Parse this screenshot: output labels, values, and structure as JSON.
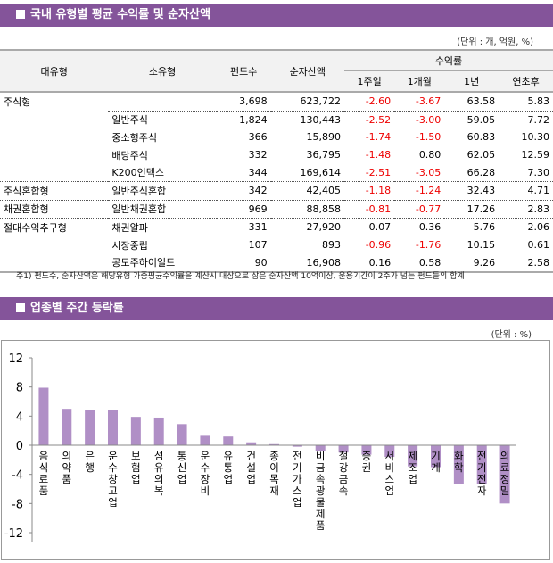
{
  "section1": {
    "title": "국내 유형별 평균 수익률 및 순자산액",
    "unit": "(단위 : 개, 억원, %)",
    "headers": {
      "major": "대유형",
      "minor": "소유형",
      "funds": "펀드수",
      "assets": "순자산액",
      "returns": "수익률",
      "w1": "1주일",
      "m1": "1개월",
      "y1": "1년",
      "ytd": "연초후"
    },
    "rows": [
      {
        "major": "주식형",
        "minor": "",
        "funds": "3,698",
        "assets": "623,722",
        "w1": "-2.60",
        "m1": "-3.67",
        "y1": "63.58",
        "ytd": "5.83"
      },
      {
        "major": "",
        "minor": "일반주식",
        "funds": "1,824",
        "assets": "130,443",
        "w1": "-2.52",
        "m1": "-3.00",
        "y1": "59.05",
        "ytd": "7.72"
      },
      {
        "major": "",
        "minor": "중소형주식",
        "funds": "366",
        "assets": "15,890",
        "w1": "-1.74",
        "m1": "-1.50",
        "y1": "60.83",
        "ytd": "10.30"
      },
      {
        "major": "",
        "minor": "배당주식",
        "funds": "332",
        "assets": "36,795",
        "w1": "-1.48",
        "m1": "0.80",
        "y1": "62.05",
        "ytd": "12.59"
      },
      {
        "major": "",
        "minor": "K200인덱스",
        "funds": "344",
        "assets": "169,614",
        "w1": "-2.51",
        "m1": "-3.05",
        "y1": "66.28",
        "ytd": "7.30"
      },
      {
        "major": "주식혼합형",
        "minor": "일반주식혼합",
        "funds": "342",
        "assets": "42,405",
        "w1": "-1.18",
        "m1": "-1.24",
        "y1": "32.43",
        "ytd": "4.71"
      },
      {
        "major": "채권혼합형",
        "minor": "일반채권혼합",
        "funds": "969",
        "assets": "88,858",
        "w1": "-0.81",
        "m1": "-0.77",
        "y1": "17.26",
        "ytd": "2.83"
      },
      {
        "major": "절대수익추구형",
        "minor": "채권알파",
        "funds": "331",
        "assets": "27,920",
        "w1": "0.07",
        "m1": "0.36",
        "y1": "5.76",
        "ytd": "2.06"
      },
      {
        "major": "",
        "minor": "시장중립",
        "funds": "107",
        "assets": "893",
        "w1": "-0.96",
        "m1": "-1.76",
        "y1": "10.15",
        "ytd": "0.61"
      },
      {
        "major": "",
        "minor": "공모주하이일드",
        "funds": "90",
        "assets": "16,908",
        "w1": "0.16",
        "m1": "0.58",
        "y1": "9.26",
        "ytd": "2.58"
      }
    ],
    "note": "주1) 펀드수, 순자산액은 해당유형 가중평균수익률을 계산시 대상으로 삼은 순자산액 10억이상, 운용기간이 2주가 넘는 펀드들의 합계"
  },
  "section2": {
    "title": "업종별 주간 등락률",
    "unit": "(단위 : %)"
  },
  "colors": {
    "header_bar": "#84549a",
    "bar": "#b08fc6",
    "negative": "#e00000"
  },
  "chart_data": {
    "type": "bar",
    "ylim": [
      -12,
      12
    ],
    "yticks": [
      12,
      8,
      4,
      0,
      -4,
      -8,
      -12
    ],
    "grid": false,
    "categories": [
      "음식료품",
      "의약품",
      "은행",
      "운수창고업",
      "보험업",
      "섬유의복",
      "통신업",
      "운수장비",
      "유통업",
      "건설업",
      "종이목재",
      "전기가스업",
      "비금속광물제품",
      "철강금속",
      "증권",
      "서비스업",
      "제조업",
      "기계",
      "화학",
      "전기전자",
      "의료정밀"
    ],
    "values": [
      7.9,
      5.0,
      4.8,
      4.8,
      3.9,
      3.8,
      2.9,
      1.3,
      1.2,
      0.4,
      0.15,
      -0.2,
      -0.8,
      -1.0,
      -1.3,
      -1.6,
      -2.9,
      -3.0,
      -5.3,
      -5.3,
      -8.0
    ]
  }
}
